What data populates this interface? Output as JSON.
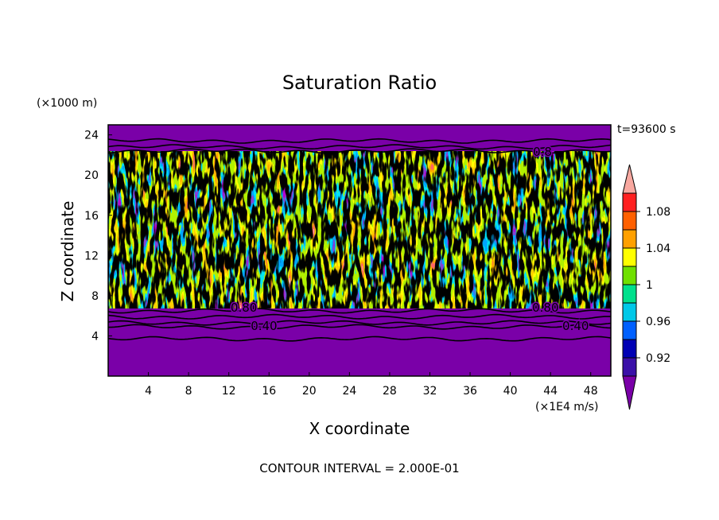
{
  "chart_data": {
    "type": "heatmap",
    "title": "Saturation Ratio",
    "xlabel": "X coordinate",
    "ylabel": "Z coordinate",
    "x_unit": "(×1E4 m/s)",
    "y_unit": "(×1000 m)",
    "time_label": "t=93600 s",
    "footer": "CONTOUR INTERVAL = 2.000E-01",
    "xlim": [
      0,
      50
    ],
    "ylim": [
      0,
      25
    ],
    "x_ticks": [
      "4",
      "8",
      "12",
      "16",
      "20",
      "24",
      "28",
      "32",
      "36",
      "40",
      "44",
      "48"
    ],
    "y_ticks": [
      "4",
      "8",
      "12",
      "16",
      "20",
      "24"
    ],
    "colorbar": {
      "labels": [
        "1.08",
        "1.04",
        "1",
        "0.96",
        "0.92"
      ],
      "levels": [
        0.9,
        0.92,
        0.94,
        0.96,
        0.98,
        1.0,
        1.02,
        1.04,
        1.06,
        1.08,
        1.1
      ],
      "colors": [
        "#7a00a8",
        "#3a10a8",
        "#0000b4",
        "#0060ff",
        "#00c8e8",
        "#00e08c",
        "#70e000",
        "#ffff00",
        "#ffa000",
        "#ff6000",
        "#ff2020",
        "#f8a8a0"
      ]
    },
    "contour_labels": [
      {
        "text": "0.80",
        "x": 13.5,
        "y": 6.8
      },
      {
        "text": "0.40",
        "x": 15.5,
        "y": 5.0
      },
      {
        "text": "0.80",
        "x": 43.5,
        "y": 6.8
      },
      {
        "text": "0.40",
        "x": 46.5,
        "y": 5.0
      },
      {
        "text": "0.8",
        "x": 43.2,
        "y": 22.3
      }
    ],
    "contour_lines_z": [
      3.7,
      4.9,
      5.3,
      5.9,
      6.5,
      22.4,
      22.8,
      23.4
    ]
  }
}
